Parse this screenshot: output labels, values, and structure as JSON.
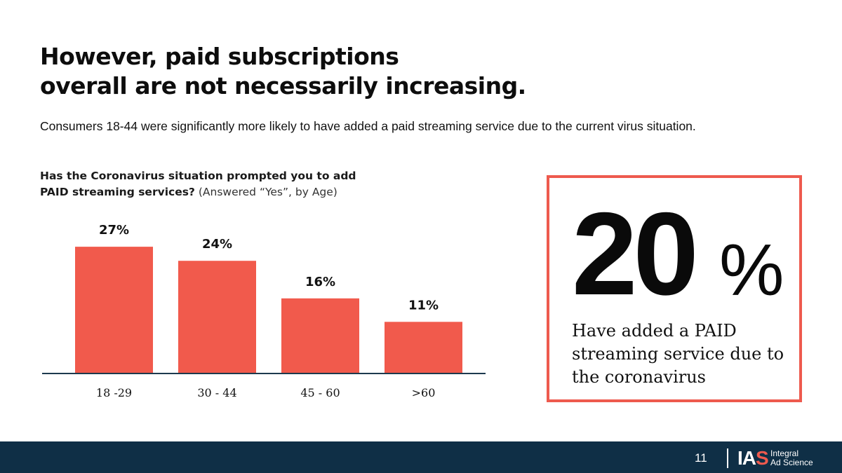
{
  "headline": {
    "line1": "However, paid subscriptions",
    "line2": "overall are not necessarily increasing."
  },
  "subtitle": "Consumers 18-44 were significantly more likely to have added a paid streaming service due to the current virus situation.",
  "question": {
    "bold_line1": "Has the Coronavirus situation prompted you to add",
    "bold_line2": "PAID streaming services?",
    "suffix": " (Answered “Yes”, by Age)"
  },
  "chart_data": {
    "type": "bar",
    "title": "Has the Coronavirus situation prompted you to add PAID streaming services? (Answered “Yes”, by Age)",
    "categories": [
      "18 -29",
      "30 - 44",
      "45 - 60",
      ">60"
    ],
    "values": [
      27,
      24,
      16,
      11
    ],
    "value_labels": [
      "27%",
      "24%",
      "16%",
      "11%"
    ],
    "xlabel": "",
    "ylabel": "",
    "ylim": [
      0,
      30
    ],
    "grid": false,
    "bar_color": "#f15a4c",
    "axis_color": "#1d3a4e"
  },
  "callout": {
    "number": "20",
    "percent_sign": "%",
    "text": "Have added a PAID streaming service due to the coronavirus",
    "border_color": "#ee5a4e"
  },
  "footer": {
    "page_number": "11",
    "logo_letters_white": "IA",
    "logo_letter_accent": "S",
    "logo_word1": "Integral",
    "logo_word2": "Ad Science",
    "background_color": "#0f2f46"
  }
}
